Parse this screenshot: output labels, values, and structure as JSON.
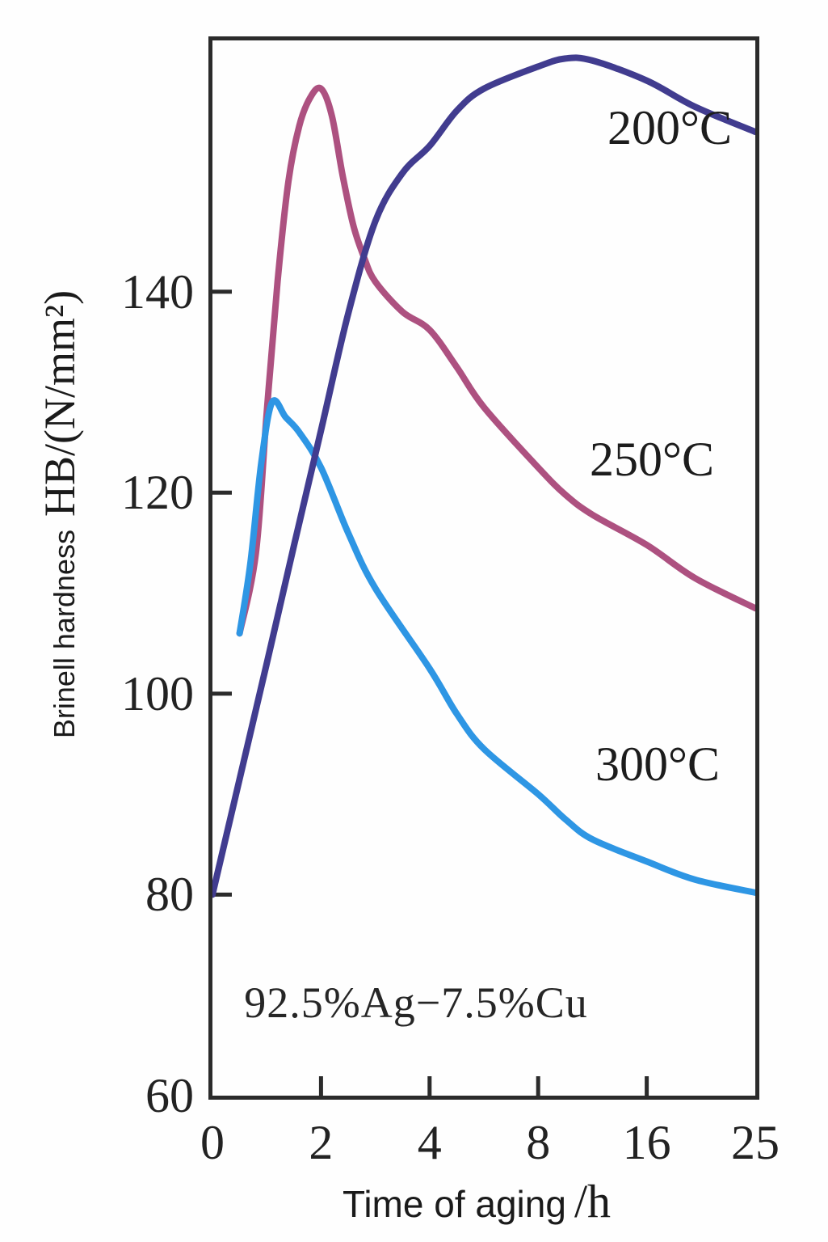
{
  "figure": {
    "background": "#fefefe",
    "frame_color": "#2b2b2b",
    "text_color": "#1e1e1e"
  },
  "chart_data": {
    "type": "line",
    "title": "",
    "annotation": "92.5%Ag−7.5%Cu",
    "x_axis": {
      "label": "Time of aging",
      "unit": "/h",
      "ticks": [
        0,
        2,
        4,
        8,
        16,
        25
      ],
      "tick_spacing": "uniform-per-interval",
      "grid": false
    },
    "y_axis": {
      "label": "Brinell hardness",
      "unit": "HB/(N/mm²)",
      "ticks": [
        60,
        80,
        100,
        120,
        140
      ],
      "range": [
        60,
        165
      ],
      "grid": false
    },
    "legend_position": "inline-curve-labels",
    "stroke_width": 8,
    "draw_order": [
      1,
      2,
      0
    ],
    "series": [
      {
        "name": "200°C",
        "color": "#413c8f",
        "points": [
          [
            0,
            80
          ],
          [
            0.5,
            91.5
          ],
          [
            1,
            103
          ],
          [
            1.5,
            114.7
          ],
          [
            2,
            126.2
          ],
          [
            2.5,
            137.8
          ],
          [
            3,
            147
          ],
          [
            3.5,
            151.8
          ],
          [
            4,
            154.5
          ],
          [
            5,
            158
          ],
          [
            6,
            160.2
          ],
          [
            8,
            162.4
          ],
          [
            10,
            163.2
          ],
          [
            12,
            163
          ],
          [
            16,
            161
          ],
          [
            20,
            158.4
          ],
          [
            25,
            155.9
          ]
        ]
      },
      {
        "name": "250°C",
        "color": "#ad5180",
        "points": [
          [
            0.5,
            106
          ],
          [
            0.8,
            114
          ],
          [
            1,
            128
          ],
          [
            1.2,
            141
          ],
          [
            1.4,
            151
          ],
          [
            1.6,
            156.5
          ],
          [
            1.8,
            159.3
          ],
          [
            2,
            160.2
          ],
          [
            2.2,
            157.5
          ],
          [
            2.4,
            151.5
          ],
          [
            2.6,
            146.5
          ],
          [
            2.8,
            143.3
          ],
          [
            3,
            141
          ],
          [
            3.5,
            138
          ],
          [
            4,
            136.2
          ],
          [
            5,
            132.5
          ],
          [
            6,
            128.5
          ],
          [
            8,
            122.5
          ],
          [
            10,
            119.8
          ],
          [
            12,
            117.8
          ],
          [
            16,
            114.8
          ],
          [
            20,
            111.5
          ],
          [
            25,
            108.5
          ]
        ]
      },
      {
        "name": "300°C",
        "color": "#2e96e4",
        "points": [
          [
            0.5,
            106
          ],
          [
            0.7,
            113
          ],
          [
            0.9,
            123
          ],
          [
            1.1,
            129
          ],
          [
            1.35,
            127.5
          ],
          [
            1.6,
            126
          ],
          [
            2,
            122.5
          ],
          [
            2.5,
            116
          ],
          [
            3,
            110.5
          ],
          [
            4,
            102.5
          ],
          [
            5,
            98
          ],
          [
            6,
            94.5
          ],
          [
            8,
            90
          ],
          [
            10,
            87.5
          ],
          [
            12,
            85.5
          ],
          [
            16,
            83.3
          ],
          [
            20,
            81.5
          ],
          [
            25,
            80.2
          ]
        ]
      }
    ]
  }
}
